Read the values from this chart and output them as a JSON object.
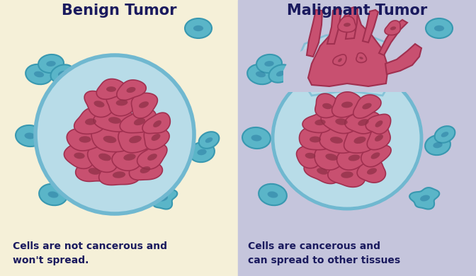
{
  "bg_left": "#f5f0d8",
  "bg_right": "#c5c5dc",
  "title_left": "Benign Tumor",
  "title_right": "Malignant Tumor",
  "title_color": "#1a1a5e",
  "title_fontsize": 15,
  "caption_left": "Cells are not cancerous and\nwon't spread.",
  "caption_right": "Cells are cancerous and\ncan spread to other tissues",
  "caption_color": "#1a1a5e",
  "caption_fontsize": 10,
  "cell_fill": "#c85070",
  "cell_outline": "#a03050",
  "cell_inner": "#903048",
  "membrane_fill": "#b8dce8",
  "membrane_edge": "#70b8d0",
  "free_cell_fill": "#5ab5c8",
  "free_cell_edge": "#3898b0",
  "free_cell_inner": "#2878a0"
}
